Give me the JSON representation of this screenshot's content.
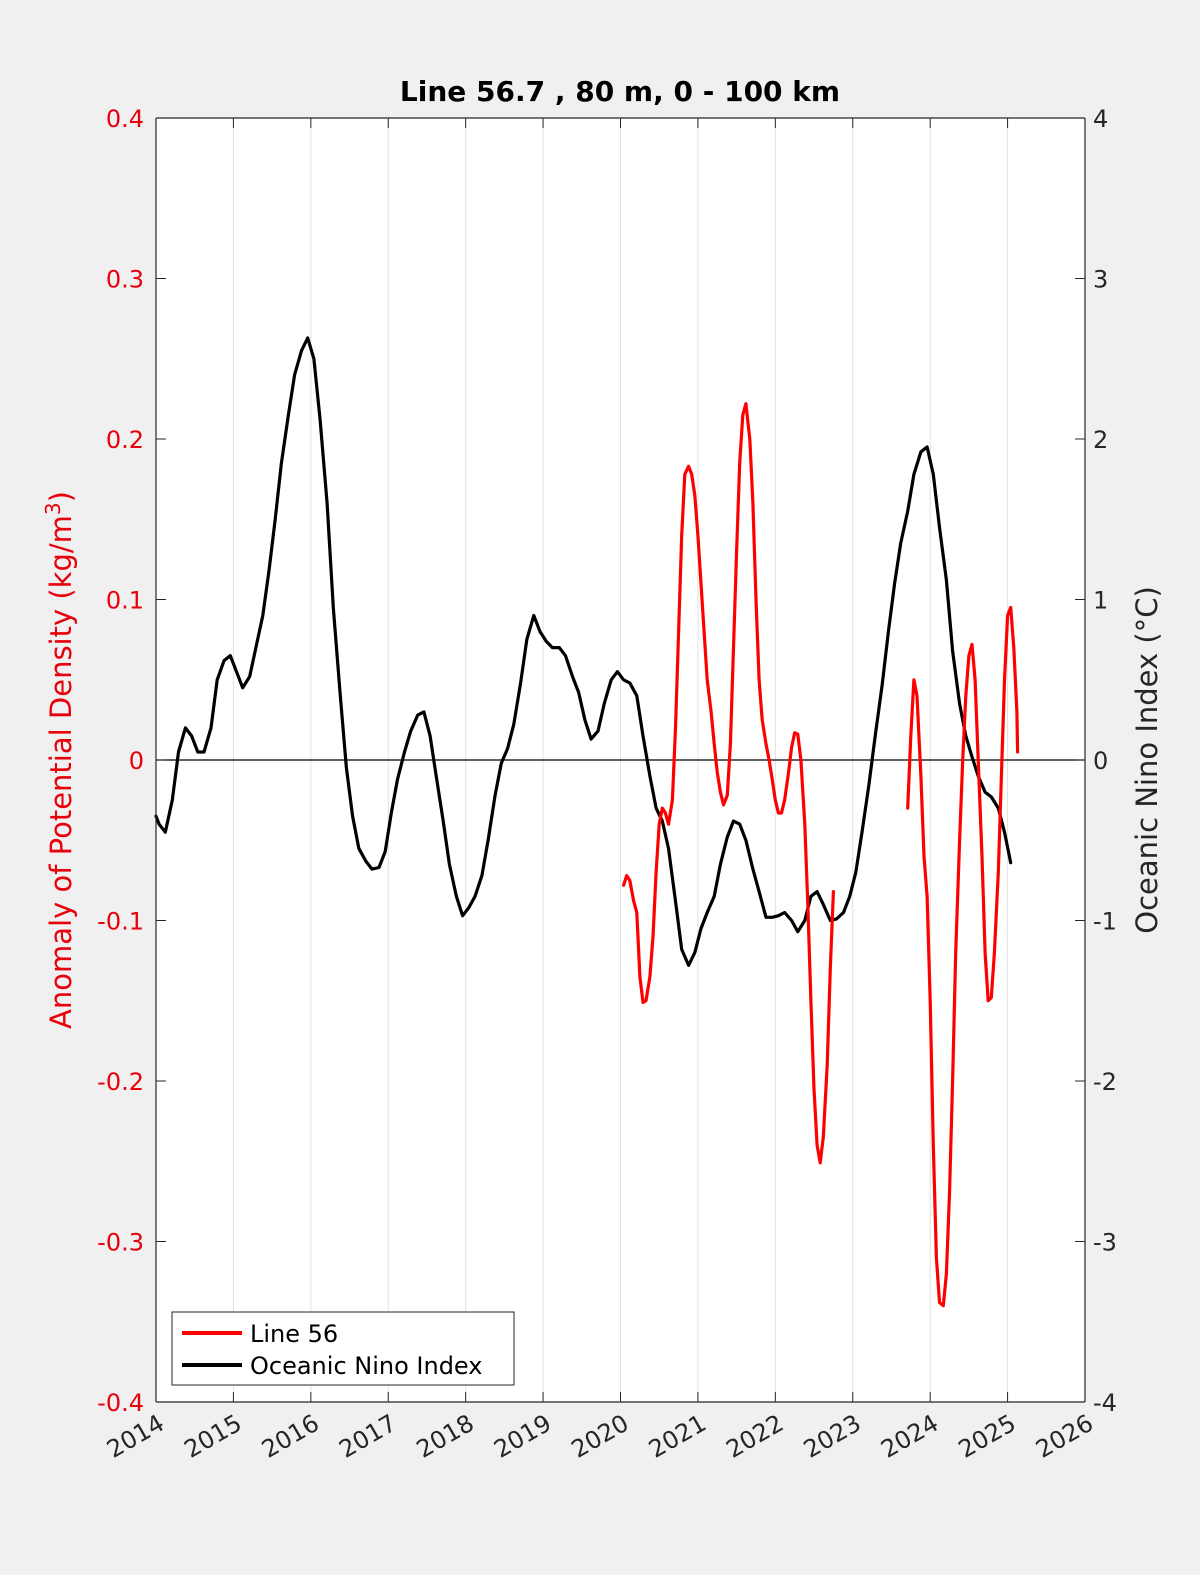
{
  "chart_data": {
    "type": "line",
    "title": "Line 56.7 , 80 m, 0 - 100 km",
    "y1label": "Anomaly of Potential Density (kg/m³)",
    "y2label": "Oceanic Nino Index (°C)",
    "xlim": [
      2014,
      2026
    ],
    "y1lim": [
      -0.4,
      0.4
    ],
    "y2lim": [
      -4,
      4
    ],
    "grid": "x",
    "legend_position": "bottom-left",
    "x_ticks": [
      "2014",
      "2015",
      "2016",
      "2017",
      "2018",
      "2019",
      "2020",
      "2021",
      "2022",
      "2023",
      "2024",
      "2025",
      "2026"
    ],
    "y1_ticks": [
      "0.4",
      "0.3",
      "0.2",
      "0.1",
      "0",
      "-0.1",
      "-0.2",
      "-0.3",
      "-0.4"
    ],
    "y2_ticks": [
      "4",
      "3",
      "2",
      "1",
      "0",
      "-1",
      "-2",
      "-3",
      "-4"
    ],
    "colors": {
      "line56": "#ff0000",
      "oni": "#000000",
      "left_axis": "#e8000b",
      "axes": "#262626"
    },
    "series": [
      {
        "name": "Line 56",
        "axis": "left",
        "segments": [
          [
            [
              2020.04,
              -0.078
            ],
            [
              2020.08,
              -0.072
            ],
            [
              2020.12,
              -0.075
            ],
            [
              2020.17,
              -0.088
            ],
            [
              2020.21,
              -0.095
            ],
            [
              2020.25,
              -0.135
            ],
            [
              2020.29,
              -0.151
            ],
            [
              2020.33,
              -0.15
            ],
            [
              2020.38,
              -0.135
            ],
            [
              2020.42,
              -0.11
            ],
            [
              2020.46,
              -0.07
            ],
            [
              2020.5,
              -0.04
            ],
            [
              2020.54,
              -0.03
            ],
            [
              2020.58,
              -0.033
            ],
            [
              2020.62,
              -0.04
            ],
            [
              2020.67,
              -0.025
            ],
            [
              2020.71,
              0.02
            ],
            [
              2020.75,
              0.08
            ],
            [
              2020.79,
              0.14
            ],
            [
              2020.83,
              0.178
            ],
            [
              2020.88,
              0.183
            ],
            [
              2020.92,
              0.178
            ],
            [
              2020.96,
              0.165
            ],
            [
              2021.0,
              0.14
            ],
            [
              2021.04,
              0.11
            ],
            [
              2021.08,
              0.08
            ],
            [
              2021.12,
              0.05
            ],
            [
              2021.17,
              0.03
            ],
            [
              2021.21,
              0.01
            ],
            [
              2021.25,
              -0.008
            ],
            [
              2021.29,
              -0.02
            ],
            [
              2021.33,
              -0.028
            ],
            [
              2021.38,
              -0.022
            ],
            [
              2021.42,
              0.01
            ],
            [
              2021.46,
              0.07
            ],
            [
              2021.5,
              0.13
            ],
            [
              2021.54,
              0.185
            ],
            [
              2021.58,
              0.215
            ],
            [
              2021.62,
              0.222
            ],
            [
              2021.67,
              0.2
            ],
            [
              2021.71,
              0.16
            ],
            [
              2021.75,
              0.1
            ],
            [
              2021.79,
              0.05
            ],
            [
              2021.83,
              0.025
            ],
            [
              2021.88,
              0.01
            ],
            [
              2021.92,
              0.0
            ],
            [
              2021.96,
              -0.012
            ],
            [
              2022.0,
              -0.025
            ],
            [
              2022.04,
              -0.033
            ],
            [
              2022.08,
              -0.033
            ],
            [
              2022.12,
              -0.025
            ],
            [
              2022.17,
              -0.008
            ],
            [
              2022.21,
              0.008
            ],
            [
              2022.25,
              0.017
            ],
            [
              2022.29,
              0.016
            ],
            [
              2022.33,
              0.0
            ],
            [
              2022.38,
              -0.04
            ],
            [
              2022.42,
              -0.09
            ],
            [
              2022.46,
              -0.15
            ],
            [
              2022.5,
              -0.205
            ],
            [
              2022.54,
              -0.24
            ],
            [
              2022.58,
              -0.251
            ],
            [
              2022.62,
              -0.235
            ],
            [
              2022.67,
              -0.19
            ],
            [
              2022.71,
              -0.13
            ],
            [
              2022.75,
              -0.082
            ]
          ],
          [
            [
              2023.71,
              -0.03
            ],
            [
              2023.75,
              0.015
            ],
            [
              2023.79,
              0.05
            ],
            [
              2023.83,
              0.04
            ],
            [
              2023.88,
              -0.01
            ],
            [
              2023.92,
              -0.06
            ],
            [
              2023.96,
              -0.085
            ]
          ],
          [
            [
              2023.96,
              -0.085
            ],
            [
              2024.0,
              -0.15
            ],
            [
              2024.04,
              -0.24
            ],
            [
              2024.08,
              -0.31
            ],
            [
              2024.12,
              -0.338
            ],
            [
              2024.17,
              -0.34
            ],
            [
              2024.21,
              -0.32
            ],
            [
              2024.25,
              -0.27
            ],
            [
              2024.29,
              -0.2
            ],
            [
              2024.33,
              -0.12
            ],
            [
              2024.38,
              -0.05
            ],
            [
              2024.42,
              0.0
            ],
            [
              2024.46,
              0.04
            ],
            [
              2024.5,
              0.065
            ],
            [
              2024.54,
              0.072
            ],
            [
              2024.58,
              0.05
            ],
            [
              2024.62,
              0.0
            ],
            [
              2024.67,
              -0.06
            ],
            [
              2024.71,
              -0.12
            ],
            [
              2024.75,
              -0.15
            ],
            [
              2024.79,
              -0.148
            ],
            [
              2024.83,
              -0.12
            ],
            [
              2024.88,
              -0.07
            ],
            [
              2024.92,
              -0.01
            ],
            [
              2024.96,
              0.05
            ],
            [
              2025.0,
              0.09
            ],
            [
              2025.04,
              0.095
            ],
            [
              2025.08,
              0.07
            ],
            [
              2025.12,
              0.03
            ],
            [
              2025.13,
              0.005
            ]
          ]
        ]
      },
      {
        "name": "Oceanic Nino Index",
        "axis": "right",
        "points": [
          [
            2014.0,
            -0.35
          ],
          [
            2014.04,
            -0.4
          ],
          [
            2014.12,
            -0.45
          ],
          [
            2014.21,
            -0.25
          ],
          [
            2014.29,
            0.05
          ],
          [
            2014.38,
            0.2
          ],
          [
            2014.46,
            0.15
          ],
          [
            2014.54,
            0.05
          ],
          [
            2014.62,
            0.05
          ],
          [
            2014.71,
            0.2
          ],
          [
            2014.79,
            0.5
          ],
          [
            2014.88,
            0.62
          ],
          [
            2014.96,
            0.65
          ],
          [
            2015.04,
            0.55
          ],
          [
            2015.12,
            0.45
          ],
          [
            2015.21,
            0.52
          ],
          [
            2015.29,
            0.7
          ],
          [
            2015.38,
            0.9
          ],
          [
            2015.46,
            1.18
          ],
          [
            2015.54,
            1.5
          ],
          [
            2015.62,
            1.85
          ],
          [
            2015.71,
            2.15
          ],
          [
            2015.79,
            2.4
          ],
          [
            2015.88,
            2.55
          ],
          [
            2015.96,
            2.63
          ],
          [
            2016.04,
            2.5
          ],
          [
            2016.12,
            2.12
          ],
          [
            2016.21,
            1.6
          ],
          [
            2016.29,
            0.95
          ],
          [
            2016.38,
            0.4
          ],
          [
            2016.46,
            -0.05
          ],
          [
            2016.54,
            -0.35
          ],
          [
            2016.62,
            -0.55
          ],
          [
            2016.71,
            -0.63
          ],
          [
            2016.79,
            -0.68
          ],
          [
            2016.88,
            -0.67
          ],
          [
            2016.96,
            -0.57
          ],
          [
            2017.04,
            -0.33
          ],
          [
            2017.12,
            -0.12
          ],
          [
            2017.21,
            0.05
          ],
          [
            2017.29,
            0.18
          ],
          [
            2017.38,
            0.28
          ],
          [
            2017.46,
            0.3
          ],
          [
            2017.54,
            0.15
          ],
          [
            2017.62,
            -0.1
          ],
          [
            2017.71,
            -0.38
          ],
          [
            2017.79,
            -0.65
          ],
          [
            2017.88,
            -0.85
          ],
          [
            2017.96,
            -0.97
          ],
          [
            2018.04,
            -0.92
          ],
          [
            2018.12,
            -0.85
          ],
          [
            2018.21,
            -0.72
          ],
          [
            2018.29,
            -0.5
          ],
          [
            2018.38,
            -0.22
          ],
          [
            2018.46,
            -0.02
          ],
          [
            2018.54,
            0.07
          ],
          [
            2018.62,
            0.22
          ],
          [
            2018.71,
            0.48
          ],
          [
            2018.79,
            0.75
          ],
          [
            2018.88,
            0.9
          ],
          [
            2018.96,
            0.8
          ],
          [
            2019.04,
            0.74
          ],
          [
            2019.12,
            0.7
          ],
          [
            2019.21,
            0.7
          ],
          [
            2019.29,
            0.65
          ],
          [
            2019.38,
            0.52
          ],
          [
            2019.46,
            0.42
          ],
          [
            2019.54,
            0.25
          ],
          [
            2019.62,
            0.13
          ],
          [
            2019.71,
            0.18
          ],
          [
            2019.79,
            0.35
          ],
          [
            2019.88,
            0.5
          ],
          [
            2019.96,
            0.55
          ],
          [
            2020.04,
            0.5
          ],
          [
            2020.12,
            0.48
          ],
          [
            2020.21,
            0.4
          ],
          [
            2020.29,
            0.15
          ],
          [
            2020.38,
            -0.1
          ],
          [
            2020.46,
            -0.3
          ],
          [
            2020.54,
            -0.38
          ],
          [
            2020.62,
            -0.55
          ],
          [
            2020.71,
            -0.88
          ],
          [
            2020.79,
            -1.18
          ],
          [
            2020.88,
            -1.28
          ],
          [
            2020.96,
            -1.2
          ],
          [
            2021.04,
            -1.05
          ],
          [
            2021.12,
            -0.95
          ],
          [
            2021.21,
            -0.85
          ],
          [
            2021.29,
            -0.65
          ],
          [
            2021.38,
            -0.48
          ],
          [
            2021.46,
            -0.38
          ],
          [
            2021.54,
            -0.4
          ],
          [
            2021.62,
            -0.5
          ],
          [
            2021.71,
            -0.68
          ],
          [
            2021.79,
            -0.82
          ],
          [
            2021.88,
            -0.98
          ],
          [
            2021.96,
            -0.98
          ],
          [
            2022.04,
            -0.97
          ],
          [
            2022.12,
            -0.95
          ],
          [
            2022.21,
            -1.0
          ],
          [
            2022.29,
            -1.07
          ],
          [
            2022.38,
            -1.0
          ],
          [
            2022.46,
            -0.85
          ],
          [
            2022.54,
            -0.82
          ],
          [
            2022.62,
            -0.9
          ],
          [
            2022.71,
            -1.0
          ],
          [
            2022.79,
            -0.99
          ],
          [
            2022.88,
            -0.95
          ],
          [
            2022.96,
            -0.85
          ],
          [
            2023.04,
            -0.7
          ],
          [
            2023.12,
            -0.45
          ],
          [
            2023.21,
            -0.15
          ],
          [
            2023.29,
            0.15
          ],
          [
            2023.38,
            0.47
          ],
          [
            2023.46,
            0.8
          ],
          [
            2023.54,
            1.1
          ],
          [
            2023.62,
            1.35
          ],
          [
            2023.71,
            1.55
          ],
          [
            2023.79,
            1.78
          ],
          [
            2023.88,
            1.92
          ],
          [
            2023.96,
            1.95
          ],
          [
            2024.04,
            1.78
          ],
          [
            2024.12,
            1.45
          ],
          [
            2024.21,
            1.12
          ],
          [
            2024.29,
            0.68
          ],
          [
            2024.38,
            0.35
          ],
          [
            2024.46,
            0.15
          ],
          [
            2024.54,
            0.02
          ],
          [
            2024.62,
            -0.1
          ],
          [
            2024.71,
            -0.2
          ],
          [
            2024.79,
            -0.23
          ],
          [
            2024.88,
            -0.3
          ],
          [
            2024.96,
            -0.45
          ],
          [
            2025.04,
            -0.64
          ]
        ]
      }
    ]
  }
}
